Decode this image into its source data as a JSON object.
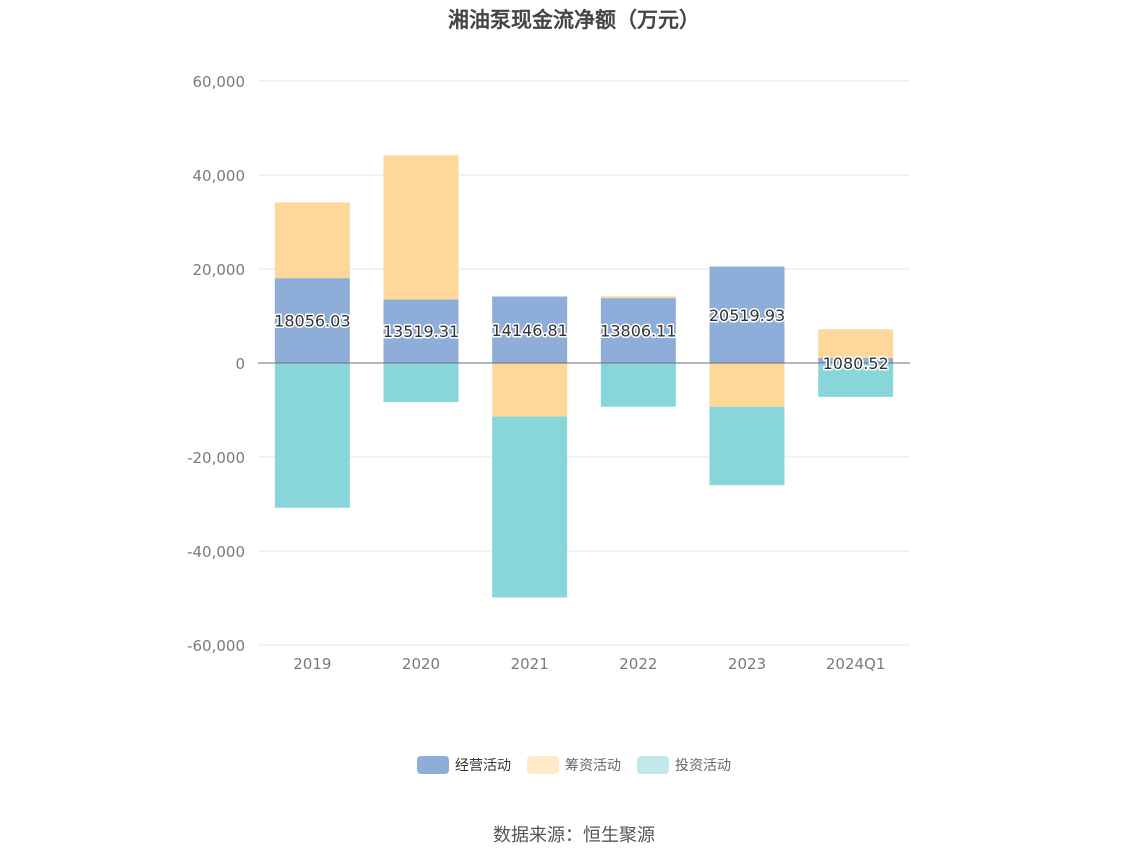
{
  "chart_data": {
    "type": "bar",
    "stacked": true,
    "title": "湘油泵现金流净额（万元）",
    "categories": [
      "2019",
      "2020",
      "2021",
      "2022",
      "2023",
      "2024Q1"
    ],
    "series": [
      {
        "name": "经营活动",
        "color": "#8fadd9",
        "values": [
          18056.03,
          13519.31,
          14146.81,
          13806.11,
          20519.93,
          1080.52
        ],
        "labels": [
          "18056.03",
          "13519.31",
          "14146.81",
          "13806.11",
          "20519.93",
          "1080.52"
        ]
      },
      {
        "name": "筹资活动",
        "color": "#fed89b",
        "values": [
          16100,
          30700,
          -11400,
          400,
          -9300,
          6100
        ]
      },
      {
        "name": "投资活动",
        "color": "#88d6d9",
        "values": [
          -30800,
          -8300,
          -38500,
          -9300,
          -16700,
          -7200
        ]
      }
    ],
    "ylim": [
      -60000,
      60000
    ],
    "yticks": [
      60000,
      40000,
      20000,
      0,
      -20000,
      -40000,
      -60000
    ],
    "ytick_labels": [
      "60,000",
      "40,000",
      "20,000",
      "0",
      "-20,000",
      "-40,000",
      "-60,000"
    ],
    "grid": true,
    "legend_position": "bottom-center",
    "legend_swatch_colors": [
      "#8fadd9",
      "#ffe9c7",
      "#c2e8ea"
    ]
  },
  "source_text": "数据来源：恒生聚源"
}
